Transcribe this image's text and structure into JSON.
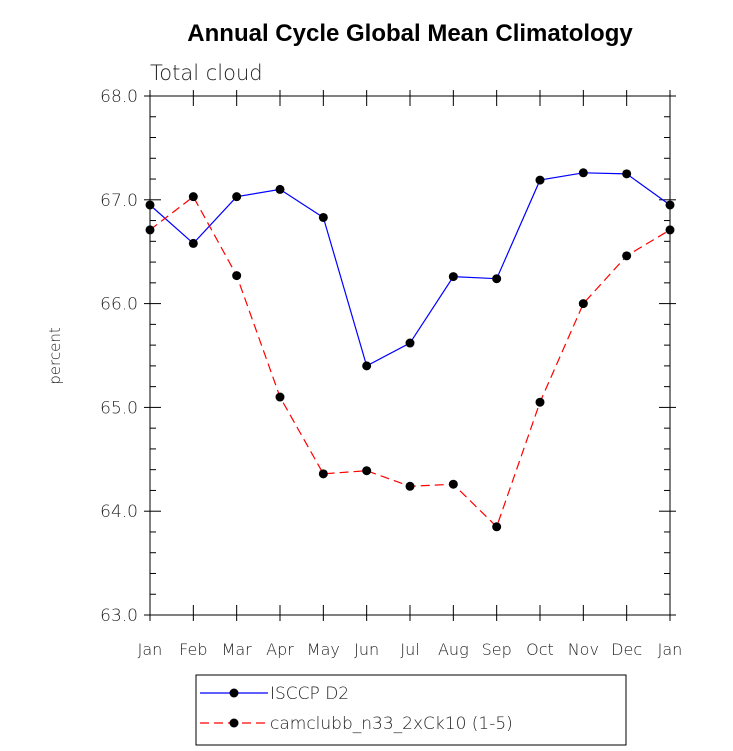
{
  "chart_data": {
    "type": "line",
    "title": "Annual Cycle Global Mean Climatology",
    "subtitle": "Total cloud",
    "ylabel": "percent",
    "xlabel": "",
    "categories": [
      "Jan",
      "Feb",
      "Mar",
      "Apr",
      "May",
      "Jun",
      "Jul",
      "Aug",
      "Sep",
      "Oct",
      "Nov",
      "Dec",
      "Jan"
    ],
    "ylim": [
      63.0,
      68.0
    ],
    "yticks": [
      "63.0",
      "64.0",
      "65.0",
      "66.0",
      "67.0",
      "68.0"
    ],
    "grid": false,
    "legend_position": "bottom",
    "series": [
      {
        "name": "ISCCP D2",
        "color": "#0000ff",
        "line_style": "solid",
        "marker": "filled-circle",
        "values": [
          66.95,
          66.58,
          67.03,
          67.1,
          66.83,
          65.4,
          65.62,
          66.26,
          66.24,
          67.19,
          67.26,
          67.25,
          66.95
        ]
      },
      {
        "name": "camclubb_n33_2xCk10 (1-5)",
        "color": "#ff0000",
        "line_style": "dashed",
        "marker": "filled-circle",
        "values": [
          66.71,
          67.03,
          66.27,
          65.1,
          64.36,
          64.39,
          64.24,
          64.26,
          63.85,
          65.05,
          66.0,
          66.46,
          66.71
        ]
      }
    ]
  }
}
